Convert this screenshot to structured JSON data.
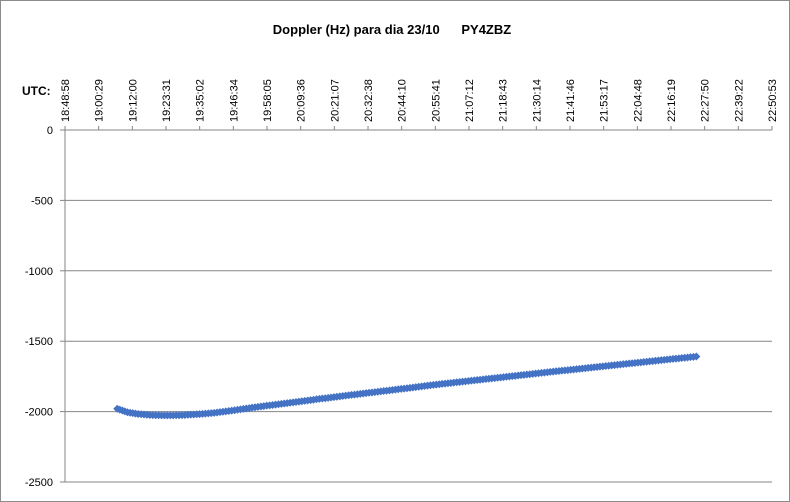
{
  "chart_data": {
    "type": "line",
    "title": "Doppler (Hz) para dia 23/10      PY4ZBZ",
    "x_axis_label": "UTC:",
    "xlabel": "",
    "ylabel": "",
    "x_tick_labels": [
      "18:48:58",
      "19:00:29",
      "19:12:00",
      "19:23:31",
      "19:35:02",
      "19:46:34",
      "19:58:05",
      "20:09:36",
      "20:21:07",
      "20:32:38",
      "20:44:10",
      "20:55:41",
      "21:07:12",
      "21:18:43",
      "21:30:14",
      "21:41:46",
      "21:53:17",
      "22:04:48",
      "22:16:19",
      "22:27:50",
      "22:39:22",
      "22:50:53"
    ],
    "xlim": [
      "18:48:58",
      "22:50:53"
    ],
    "y_tick_labels": [
      "0",
      "-500",
      "-1000",
      "-1500",
      "-2000",
      "-2500"
    ],
    "y_ticks": [
      0,
      -500,
      -1000,
      -1500,
      -2000,
      -2500
    ],
    "ylim": [
      -2500,
      0
    ],
    "x_axis_position": "top",
    "grid": "horizontal",
    "series_color": "#4472c4",
    "marker": "diamond",
    "series": [
      {
        "x": [
          "19:06:50",
          "19:10:20",
          "19:14:00",
          "19:18:00",
          "19:22:00",
          "19:26:00",
          "19:30:00",
          "19:35:00",
          "19:40:00",
          "19:46:00",
          "19:52:00",
          "19:58:00",
          "20:06:00",
          "20:16:00",
          "20:26:00",
          "20:36:00",
          "20:46:00",
          "20:56:00",
          "21:06:00",
          "21:16:00",
          "21:26:00",
          "21:36:00",
          "21:46:00",
          "21:56:00",
          "22:06:00",
          "22:16:00",
          "22:25:00"
        ],
        "values": [
          -1980,
          -2005,
          -2017,
          -2024,
          -2027,
          -2027,
          -2024,
          -2018,
          -2009,
          -1993,
          -1975,
          -1958,
          -1937,
          -1910,
          -1884,
          -1859,
          -1834,
          -1808,
          -1785,
          -1762,
          -1739,
          -1716,
          -1694,
          -1672,
          -1650,
          -1628,
          -1609
        ]
      }
    ]
  }
}
